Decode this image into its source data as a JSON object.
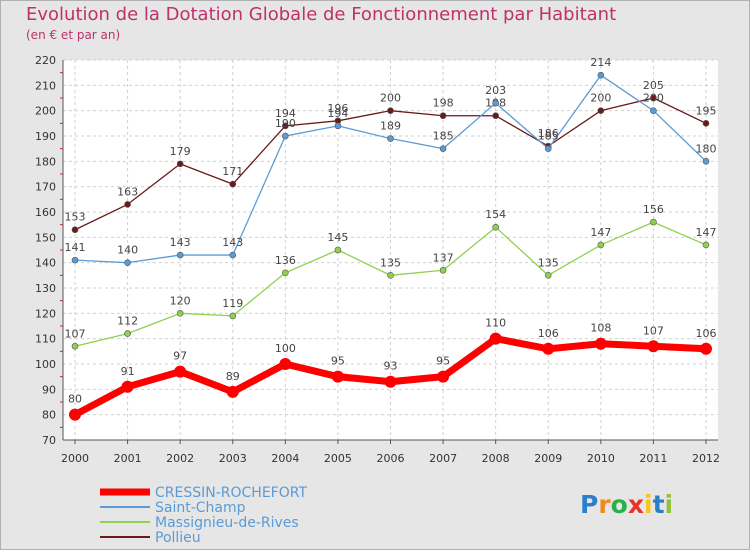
{
  "chart_data": {
    "type": "line",
    "title": "Evolution de la Dotation Globale de Fonctionnement par Habitant",
    "subtitle": "(en € et par an)",
    "x": [
      "2000",
      "2001",
      "2002",
      "2003",
      "2004",
      "2005",
      "2006",
      "2007",
      "2008",
      "2009",
      "2010",
      "2011",
      "2012"
    ],
    "ylim": [
      70,
      220
    ],
    "yticks": [
      70,
      80,
      90,
      100,
      110,
      120,
      130,
      140,
      150,
      160,
      170,
      180,
      190,
      200,
      210,
      220
    ],
    "grid": true,
    "legend": "bottom-left",
    "series": [
      {
        "name": "CRESSIN-ROCHEFORT",
        "color": "#ff0000",
        "values": [
          80,
          91,
          97,
          89,
          100,
          95,
          93,
          95,
          110,
          106,
          108,
          107,
          106
        ]
      },
      {
        "name": "Saint-Champ",
        "color": "#5b9bd5",
        "values": [
          141,
          140,
          143,
          143,
          190,
          194,
          189,
          185,
          203,
          185,
          214,
          200,
          180
        ]
      },
      {
        "name": "Massignieu-de-Rives",
        "color": "#8fd14f",
        "values": [
          107,
          112,
          120,
          119,
          136,
          145,
          135,
          137,
          154,
          135,
          147,
          156,
          147
        ]
      },
      {
        "name": "Pollieu",
        "color": "#6b1a1a",
        "values": [
          153,
          163,
          179,
          171,
          194,
          196,
          200,
          198,
          198,
          186,
          200,
          205,
          195
        ]
      }
    ]
  },
  "logo": {
    "letters": [
      "P",
      "r",
      "o",
      "x",
      "i",
      "t",
      "i"
    ],
    "colors": [
      "#2a7fc9",
      "#f08a1c",
      "#2ab04a",
      "#e8332a",
      "#f5c518",
      "#2a7fc9",
      "#8fc43a"
    ]
  }
}
